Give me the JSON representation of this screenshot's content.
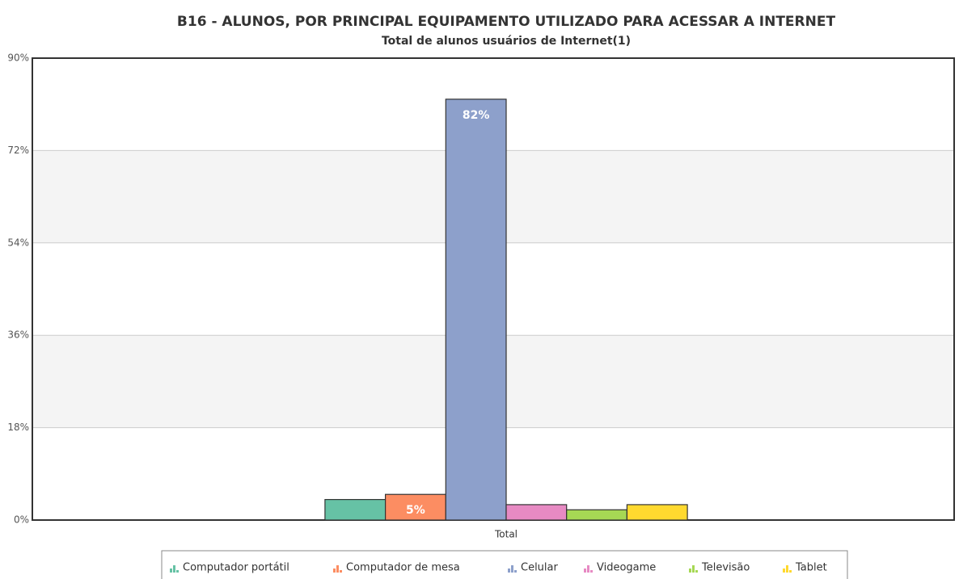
{
  "chart_data": {
    "type": "bar",
    "title": "B16 - ALUNOS, POR PRINCIPAL EQUIPAMENTO UTILIZADO PARA ACESSAR A INTERNET",
    "subtitle": "Total de alunos usuários de Internet(1)",
    "categories": [
      "Total"
    ],
    "series": [
      {
        "name": "Computador portátil",
        "color": "#66c2a5",
        "values": [
          4
        ]
      },
      {
        "name": "Computador de mesa",
        "color": "#fc8d62",
        "values": [
          5
        ],
        "value_labels": [
          "5%"
        ]
      },
      {
        "name": "Celular",
        "color": "#8da0cb",
        "values": [
          82
        ],
        "value_labels": [
          "82%"
        ]
      },
      {
        "name": "Videogame",
        "color": "#e78ac3",
        "values": [
          3
        ]
      },
      {
        "name": "Televisão",
        "color": "#a6d854",
        "values": [
          2
        ]
      },
      {
        "name": "Tablet",
        "color": "#ffd92f",
        "values": [
          3
        ]
      }
    ],
    "ylim": [
      0,
      90
    ],
    "yticks": [
      {
        "value": 0,
        "label": "0%"
      },
      {
        "value": 18,
        "label": "18%"
      },
      {
        "value": 36,
        "label": "36%"
      },
      {
        "value": 54,
        "label": "54%"
      },
      {
        "value": 72,
        "label": "72%"
      },
      {
        "value": 90,
        "label": "90%"
      }
    ],
    "grid": true
  }
}
